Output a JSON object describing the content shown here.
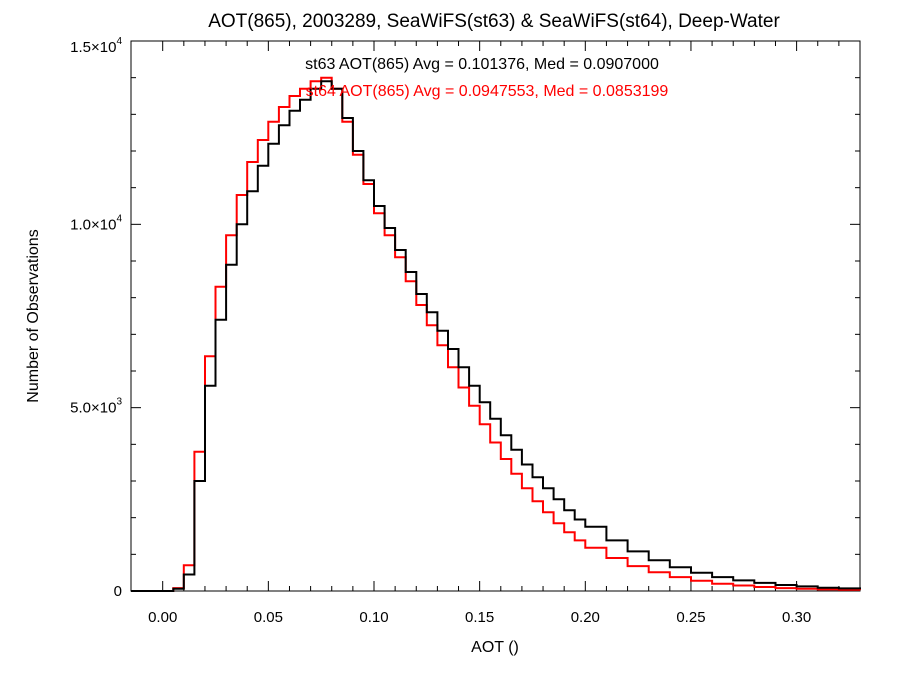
{
  "chart_data": {
    "type": "line",
    "step": true,
    "title": "AOT(865), 2003289, SeaWiFS(st63) & SeaWiFS(st64), Deep-Water",
    "xlabel": "AOT ()",
    "ylabel": "Number of Observations",
    "xlim": [
      -0.015,
      0.33
    ],
    "ylim": [
      0,
      15000
    ],
    "grid": false,
    "x_ticks": [
      {
        "value": 0.0,
        "label": "0.00"
      },
      {
        "value": 0.05,
        "label": "0.05"
      },
      {
        "value": 0.1,
        "label": "0.10"
      },
      {
        "value": 0.15,
        "label": "0.15"
      },
      {
        "value": 0.2,
        "label": "0.20"
      },
      {
        "value": 0.25,
        "label": "0.25"
      },
      {
        "value": 0.3,
        "label": "0.30"
      }
    ],
    "y_ticks": [
      {
        "value": 0,
        "label": "0",
        "mantissa": "",
        "exponent": ""
      },
      {
        "value": 5000,
        "label": "5.0×10^3",
        "mantissa": "5.0×10",
        "exponent": "3"
      },
      {
        "value": 10000,
        "label": "1.0×10^4",
        "mantissa": "1.0×10",
        "exponent": "4"
      },
      {
        "value": 15000,
        "label": "1.5×10^4",
        "mantissa": "1.5×10",
        "exponent": "4"
      }
    ],
    "annotations": [
      "st63 AOT(865) Avg = 0.101376, Med = 0.0907000",
      "st64 AOT(865) Avg = 0.0947553, Med = 0.0853199"
    ],
    "series": [
      {
        "name": "st63",
        "color": "#000000",
        "x": [
          -0.015,
          0.0,
          0.005,
          0.01,
          0.015,
          0.02,
          0.025,
          0.03,
          0.035,
          0.04,
          0.045,
          0.05,
          0.055,
          0.06,
          0.065,
          0.07,
          0.075,
          0.08,
          0.085,
          0.09,
          0.095,
          0.1,
          0.105,
          0.11,
          0.115,
          0.12,
          0.125,
          0.13,
          0.135,
          0.14,
          0.145,
          0.15,
          0.155,
          0.16,
          0.165,
          0.17,
          0.175,
          0.18,
          0.185,
          0.19,
          0.195,
          0.2,
          0.21,
          0.22,
          0.23,
          0.24,
          0.25,
          0.26,
          0.27,
          0.28,
          0.29,
          0.3,
          0.31,
          0.32,
          0.33
        ],
        "y": [
          0,
          0,
          60,
          450,
          3000,
          5600,
          7400,
          8900,
          10000,
          10900,
          11600,
          12200,
          12700,
          13100,
          13400,
          13700,
          13900,
          13700,
          12900,
          12000,
          11200,
          10500,
          9900,
          9300,
          8700,
          8100,
          7600,
          7100,
          6600,
          6100,
          5600,
          5150,
          4700,
          4250,
          3850,
          3450,
          3100,
          2800,
          2500,
          2200,
          1950,
          1750,
          1380,
          1080,
          840,
          650,
          500,
          380,
          290,
          220,
          165,
          125,
          90,
          70,
          50
        ]
      },
      {
        "name": "st64",
        "color": "#ff0000",
        "x": [
          -0.015,
          0.0,
          0.005,
          0.01,
          0.015,
          0.02,
          0.025,
          0.03,
          0.035,
          0.04,
          0.045,
          0.05,
          0.055,
          0.06,
          0.065,
          0.07,
          0.075,
          0.08,
          0.085,
          0.09,
          0.095,
          0.1,
          0.105,
          0.11,
          0.115,
          0.12,
          0.125,
          0.13,
          0.135,
          0.14,
          0.145,
          0.15,
          0.155,
          0.16,
          0.165,
          0.17,
          0.175,
          0.18,
          0.185,
          0.19,
          0.195,
          0.2,
          0.21,
          0.22,
          0.23,
          0.24,
          0.25,
          0.26,
          0.27,
          0.28,
          0.29,
          0.3,
          0.31,
          0.32,
          0.33
        ],
        "y": [
          0,
          0,
          80,
          700,
          3800,
          6400,
          8300,
          9700,
          10800,
          11700,
          12300,
          12800,
          13200,
          13500,
          13700,
          13900,
          14000,
          13700,
          12800,
          11900,
          11100,
          10300,
          9700,
          9100,
          8450,
          7800,
          7250,
          6700,
          6100,
          5550,
          5050,
          4550,
          4050,
          3600,
          3200,
          2800,
          2450,
          2150,
          1850,
          1600,
          1380,
          1180,
          900,
          680,
          510,
          380,
          280,
          200,
          150,
          110,
          80,
          60,
          45,
          35,
          25
        ]
      }
    ]
  }
}
